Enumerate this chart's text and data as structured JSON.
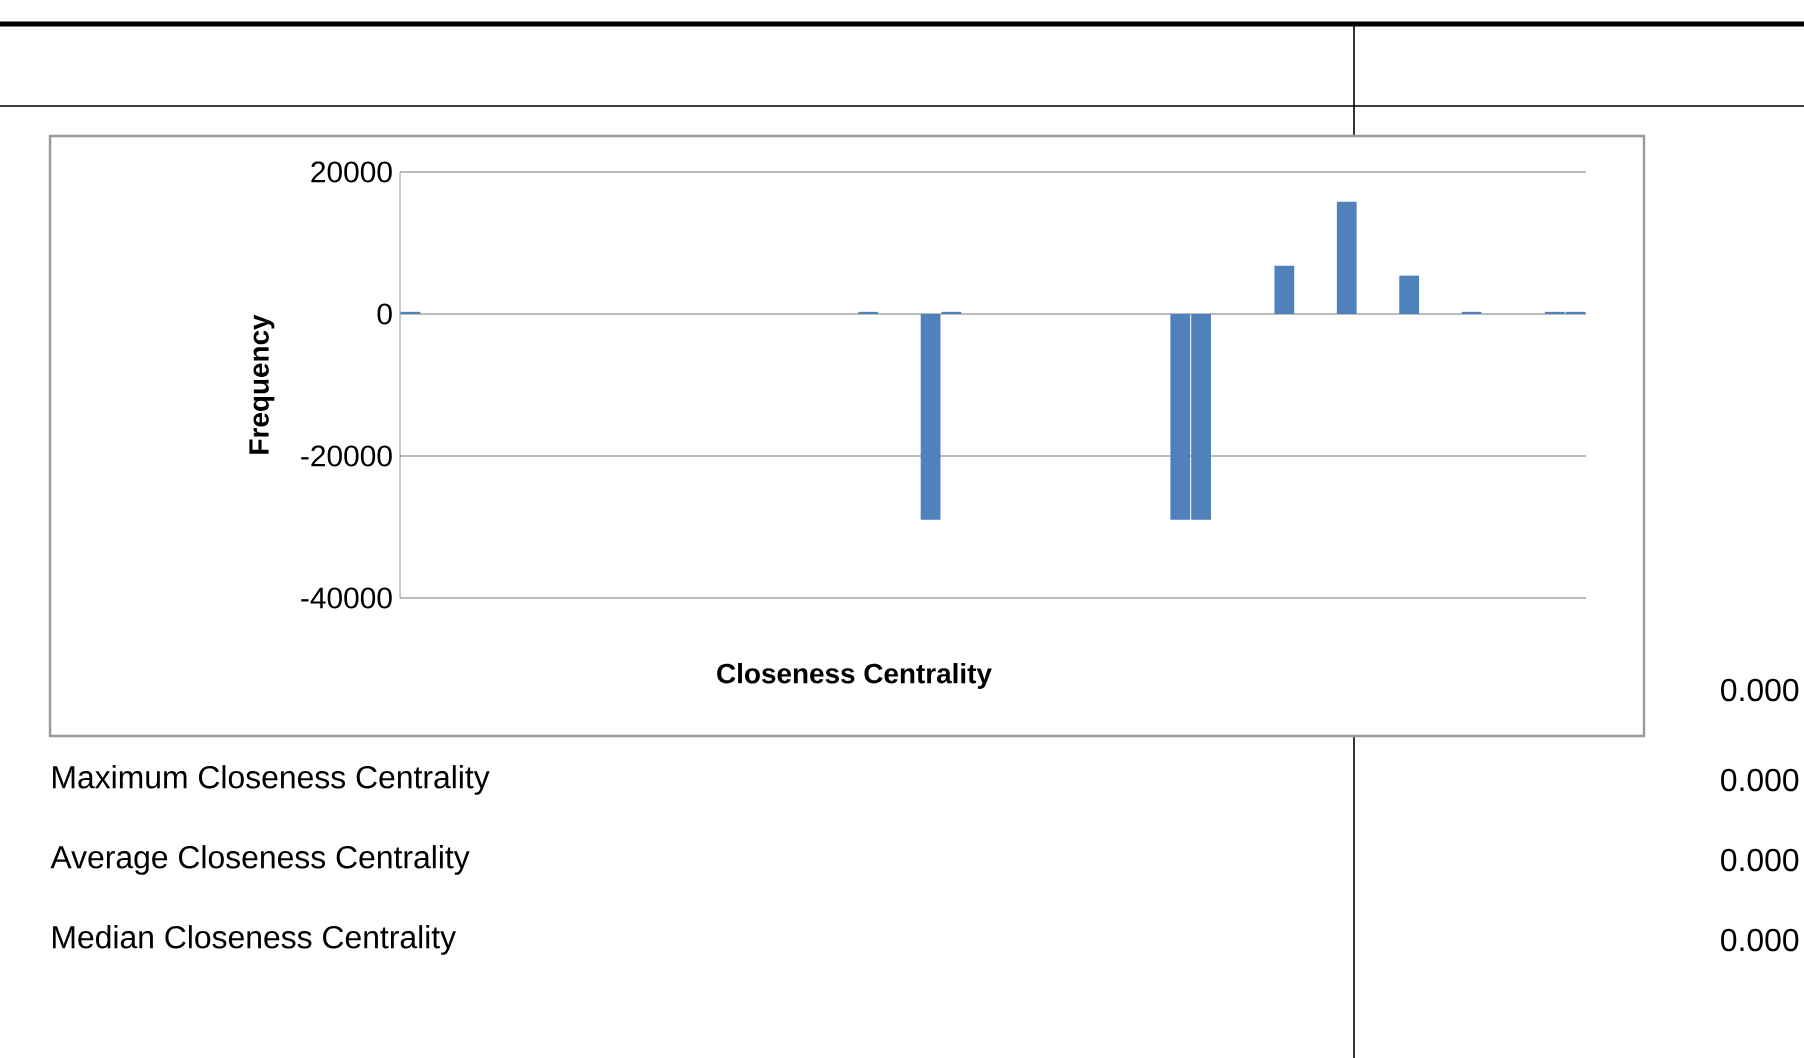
{
  "chart_data": {
    "type": "bar",
    "xlabel": "Closeness Centrality",
    "ylabel": "Frequency",
    "categories": [
      null,
      null,
      null,
      null,
      null,
      null,
      null,
      null,
      null,
      null,
      null,
      null,
      null,
      null,
      null,
      null,
      null,
      null,
      null,
      null,
      null,
      null,
      null,
      null,
      null,
      null,
      null,
      null,
      null,
      null,
      null,
      null,
      null,
      null,
      null,
      null,
      null,
      null,
      null,
      null,
      null,
      null,
      null,
      null,
      null,
      null,
      null,
      null,
      null,
      null,
      null,
      null,
      null,
      null,
      null,
      null,
      null
    ],
    "values": [
      300,
      0,
      0,
      0,
      0,
      0,
      0,
      0,
      0,
      0,
      0,
      0,
      0,
      0,
      0,
      0,
      0,
      0,
      0,
      0,
      0,
      0,
      300,
      0,
      0,
      -29000,
      300,
      0,
      0,
      0,
      0,
      0,
      0,
      0,
      0,
      0,
      0,
      -29000,
      -29000,
      0,
      0,
      0,
      6800,
      0,
      0,
      15800,
      0,
      0,
      5400,
      0,
      0,
      300,
      0,
      0,
      0,
      300,
      300
    ],
    "color": "#4f81bd",
    "ylim": [
      -40000,
      20000
    ],
    "yticks": [
      -40000,
      -20000,
      0,
      20000
    ],
    "grid": "y",
    "tick_labels": "y",
    "annotations": [
      "0.000",
      "Maximum Closeness Centrality",
      "0.000",
      "Average Closeness Centrality",
      "0.000",
      "Median Closeness Centrality",
      "0.000"
    ]
  }
}
